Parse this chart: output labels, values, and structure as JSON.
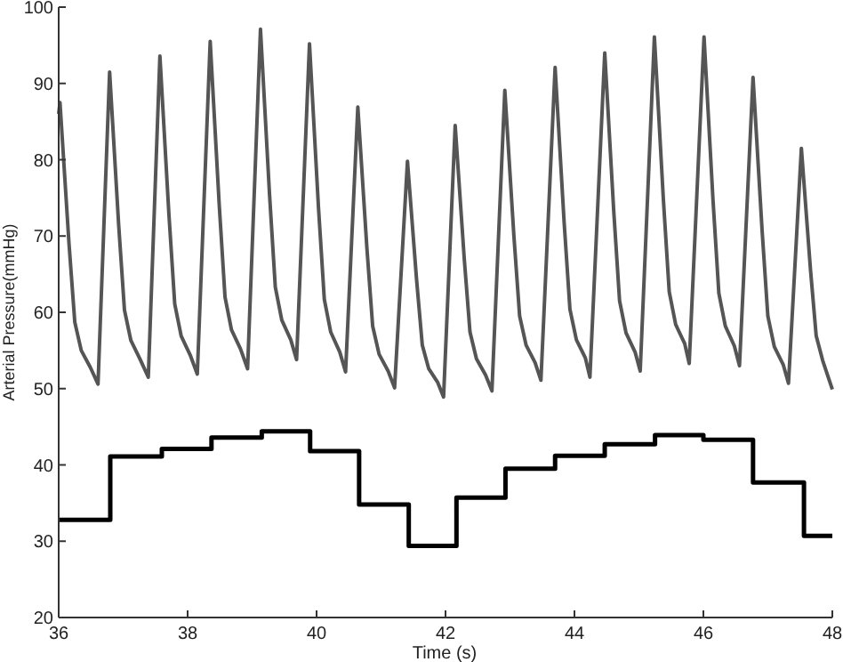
{
  "chart_data": {
    "type": "line",
    "xlabel": "Time (s)",
    "ylabel": "Arterial Pressure(mmHg)",
    "xlim": [
      36,
      48
    ],
    "ylim": [
      20,
      100
    ],
    "xticks": [
      36,
      38,
      40,
      42,
      44,
      46,
      48
    ],
    "yticks": [
      20,
      30,
      40,
      50,
      60,
      70,
      80,
      90,
      100
    ],
    "grid": false,
    "series": [
      {
        "type": "line",
        "color": "#555555",
        "x": [
          36.0,
          36.02,
          36.16,
          36.25,
          36.35,
          36.49,
          36.61,
          36.79,
          36.93,
          37.02,
          37.12,
          37.26,
          37.39,
          37.57,
          37.71,
          37.8,
          37.9,
          38.04,
          38.15,
          38.35,
          38.49,
          38.58,
          38.68,
          38.82,
          38.93,
          39.13,
          39.27,
          39.36,
          39.46,
          39.6,
          39.69,
          39.89,
          40.03,
          40.12,
          40.22,
          40.36,
          40.45,
          40.64,
          40.78,
          40.87,
          40.97,
          41.11,
          41.21,
          41.41,
          41.55,
          41.64,
          41.74,
          41.88,
          41.97,
          42.15,
          42.29,
          42.38,
          42.48,
          42.62,
          42.72,
          42.92,
          43.06,
          43.15,
          43.25,
          43.39,
          43.48,
          43.7,
          43.84,
          43.93,
          44.03,
          44.17,
          44.24,
          44.47,
          44.61,
          44.7,
          44.8,
          44.94,
          45.02,
          45.24,
          45.38,
          45.47,
          45.57,
          45.71,
          45.78,
          46.01,
          46.15,
          46.24,
          46.34,
          46.48,
          46.56,
          46.77,
          46.91,
          47.0,
          47.1,
          47.24,
          47.32,
          47.52,
          47.66,
          47.75,
          47.85,
          48.0
        ],
        "values": [
          86,
          87.5,
          69.0,
          58.7,
          55.0,
          52.8,
          50.6,
          91.5,
          71.5,
          60.3,
          56.3,
          53.9,
          51.5,
          93.6,
          72.8,
          61.1,
          56.9,
          54.4,
          51.9,
          95.5,
          74.1,
          62.0,
          57.7,
          55.2,
          52.6,
          97.1,
          75.5,
          63.3,
          59.0,
          56.4,
          53.8,
          95.2,
          73.7,
          61.7,
          57.4,
          54.8,
          52.2,
          86.9,
          68.5,
          58.2,
          54.5,
          52.3,
          50.1,
          79.8,
          64.4,
          55.7,
          52.6,
          50.8,
          48.9,
          84.5,
          67.1,
          57.4,
          53.9,
          51.8,
          49.7,
          89.1,
          70.1,
          59.5,
          55.7,
          53.4,
          51.1,
          92.1,
          71.8,
          60.4,
          56.4,
          54.0,
          51.5,
          94,
          73.2,
          61.5,
          57.3,
          54.8,
          52.3,
          96.1,
          74.7,
          62.7,
          58.4,
          55.9,
          53.3,
          96.1,
          74.6,
          62.5,
          58.2,
          55.6,
          53.0,
          90.8,
          70.8,
          59.5,
          55.5,
          53.1,
          50.7,
          81.5,
          65.7,
          56.9,
          53.7,
          49.9
        ]
      },
      {
        "type": "step",
        "color": "#000000",
        "x": [
          36,
          36.8,
          37.6,
          38.37,
          39.15,
          39.9,
          40.66,
          41.43,
          42.17,
          42.93,
          43.7,
          44.47,
          45.25,
          46.0,
          46.77,
          47.56,
          48
        ],
        "values": [
          32.8,
          41.1,
          42.1,
          43.6,
          44.4,
          41.8,
          34.8,
          29.4,
          35.7,
          39.5,
          41.2,
          42.7,
          43.9,
          43.3,
          37.7,
          30.7,
          30.7
        ]
      }
    ]
  }
}
